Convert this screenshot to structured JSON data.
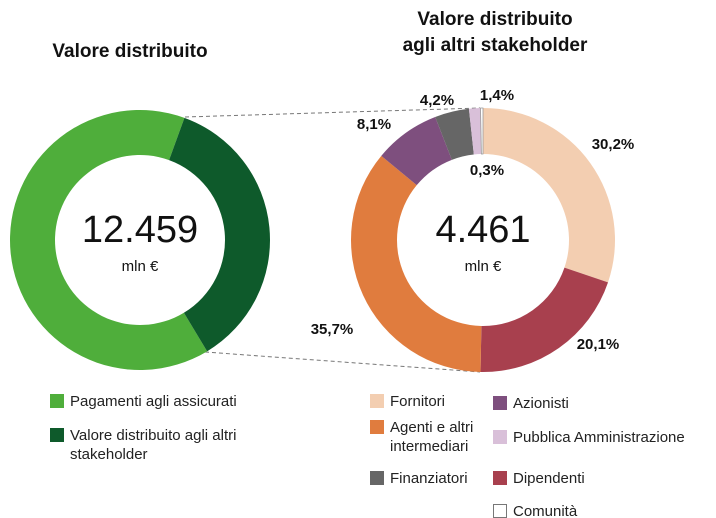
{
  "chart_data": [
    {
      "type": "donut",
      "title": [
        "Valore distribuito"
      ],
      "center_value": "12.459",
      "center_unit": "mln €",
      "categories": [
        "Pagamenti agli assicurati",
        "Valore distribuito agli altri stakeholder"
      ],
      "values": [
        7998,
        4461
      ],
      "colors": [
        "#4fae3b",
        "#0e5a2b"
      ]
    },
    {
      "type": "donut",
      "title": [
        "Valore distribuito",
        "agli altri stakeholder"
      ],
      "center_value": "4.461",
      "center_unit": "mln €",
      "categories": [
        "Fornitori",
        "Dipendenti",
        "Agenti e altri intermediari",
        "Azionisti",
        "Finanziatori",
        "Pubblica Amministrazione",
        "Comunità"
      ],
      "values": [
        30.2,
        20.1,
        35.7,
        8.1,
        4.2,
        1.4,
        0.3
      ],
      "value_labels": [
        "30,2%",
        "20,1%",
        "35,7%",
        "8,1%",
        "4,2%",
        "1,4%",
        "0,3%"
      ],
      "colors": [
        "#f3ceb1",
        "#a8404e",
        "#e07c3e",
        "#7e4f7e",
        "#666666",
        "#d9c0d9",
        "#ffffff"
      ]
    }
  ]
}
